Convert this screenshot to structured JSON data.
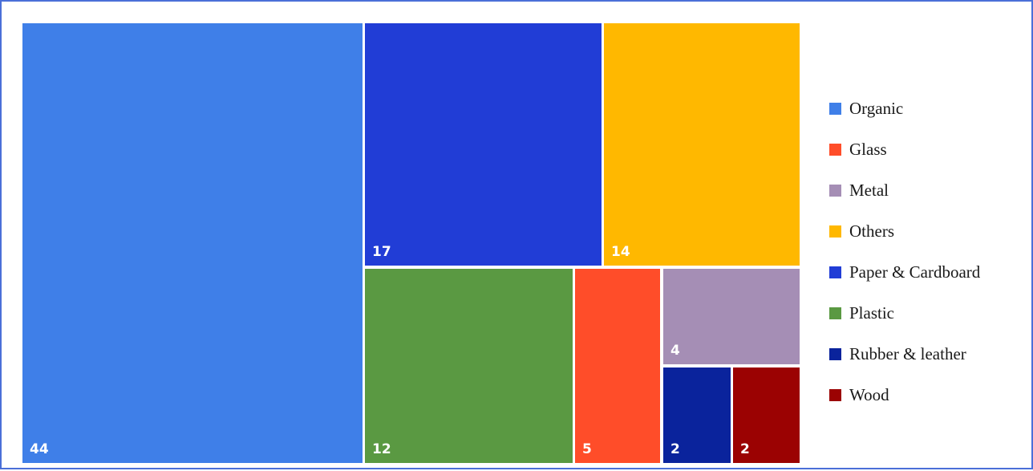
{
  "chart_data": {
    "type": "treemap",
    "title": "",
    "series": [
      {
        "name": "Organic",
        "value": 44,
        "color": "#3f7fe8"
      },
      {
        "name": "Paper & Cardboard",
        "value": 17,
        "color": "#213dd6"
      },
      {
        "name": "Others",
        "value": 14,
        "color": "#ffb800"
      },
      {
        "name": "Plastic",
        "value": 12,
        "color": "#5a9942"
      },
      {
        "name": "Glass",
        "value": 5,
        "color": "#ff4d29"
      },
      {
        "name": "Metal",
        "value": 4,
        "color": "#a58eb5"
      },
      {
        "name": "Rubber & leather",
        "value": 2,
        "color": "#0a239c"
      },
      {
        "name": "Wood",
        "value": 2,
        "color": "#9b0202"
      }
    ],
    "legend": {
      "position": "right",
      "items": [
        "Organic",
        "Glass",
        "Metal",
        "Others",
        "Paper & Cardboard",
        "Plastic",
        "Rubber & leather",
        "Wood"
      ]
    }
  }
}
